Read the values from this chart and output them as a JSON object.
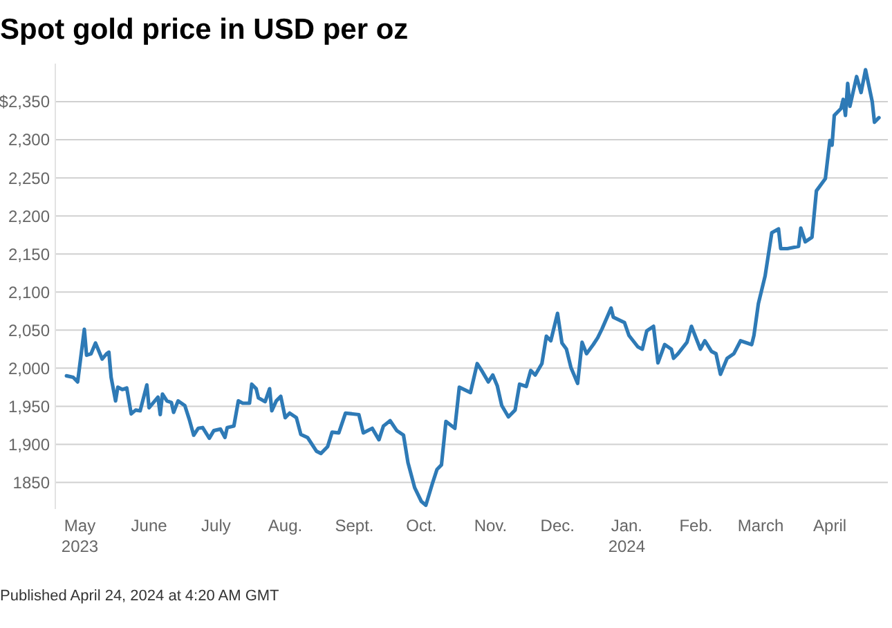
{
  "chart_data": {
    "type": "line",
    "title": "Spot gold price in USD per oz",
    "annotations": [
      "Published April 24, 2024 at 4:20 AM GMT"
    ],
    "xlim": [
      "2023-04-20",
      "2024-04-27"
    ],
    "ylim": [
      1815,
      2400
    ],
    "xticks": [
      {
        "value": "2023-05-01",
        "label": "May\n2023"
      },
      {
        "value": "2023-06-01",
        "label": "June"
      },
      {
        "value": "2023-07-01",
        "label": "July"
      },
      {
        "value": "2023-08-01",
        "label": "Aug."
      },
      {
        "value": "2023-09-01",
        "label": "Sept."
      },
      {
        "value": "2023-10-01",
        "label": "Oct."
      },
      {
        "value": "2023-11-01",
        "label": "Nov."
      },
      {
        "value": "2023-12-01",
        "label": "Dec."
      },
      {
        "value": "2024-01-01",
        "label": "Jan.\n2024"
      },
      {
        "value": "2024-02-01",
        "label": "Feb."
      },
      {
        "value": "2024-03-01",
        "label": "March"
      },
      {
        "value": "2024-04-01",
        "label": "April"
      }
    ],
    "yticks": [
      1850,
      {
        "value": 1900,
        "label": "1,900"
      },
      {
        "value": 1950,
        "label": "1,950"
      },
      {
        "value": 2000,
        "label": "2,000"
      },
      {
        "value": 2050,
        "label": "2,050"
      },
      {
        "value": 2100,
        "label": "2,100"
      },
      {
        "value": 2150,
        "label": "2,150"
      },
      {
        "value": 2200,
        "label": "2,200"
      },
      {
        "value": 2250,
        "label": "2,250"
      },
      {
        "value": 2300,
        "label": "2,300"
      },
      {
        "value": 2350,
        "label": "$2,350"
      }
    ],
    "grid": "y",
    "marker": "none",
    "line_style": "solid",
    "series": [
      {
        "color": "#2e7ab6",
        "x": [
          "2023-04-25",
          "2023-04-28",
          "2023-04-30",
          "2023-05-03",
          "2023-05-04",
          "2023-05-06",
          "2023-05-08",
          "2023-05-11",
          "2023-05-13",
          "2023-05-14",
          "2023-05-15",
          "2023-05-17",
          "2023-05-18",
          "2023-05-20",
          "2023-05-22",
          "2023-05-24",
          "2023-05-26",
          "2023-05-28",
          "2023-05-31",
          "2023-06-01",
          "2023-06-05",
          "2023-06-06",
          "2023-06-07",
          "2023-06-09",
          "2023-06-11",
          "2023-06-12",
          "2023-06-14",
          "2023-06-17",
          "2023-06-19",
          "2023-06-21",
          "2023-06-23",
          "2023-06-25",
          "2023-06-28",
          "2023-06-30",
          "2023-07-03",
          "2023-07-05",
          "2023-07-06",
          "2023-07-09",
          "2023-07-11",
          "2023-07-13",
          "2023-07-16",
          "2023-07-17",
          "2023-07-19",
          "2023-07-20",
          "2023-07-23",
          "2023-07-25",
          "2023-07-26",
          "2023-07-28",
          "2023-07-30",
          "2023-08-01",
          "2023-08-03",
          "2023-08-06",
          "2023-08-08",
          "2023-08-11",
          "2023-08-15",
          "2023-08-17",
          "2023-08-20",
          "2023-08-22",
          "2023-08-25",
          "2023-08-28",
          "2023-09-03",
          "2023-09-05",
          "2023-09-09",
          "2023-09-12",
          "2023-09-14",
          "2023-09-17",
          "2023-09-20",
          "2023-09-23",
          "2023-09-25",
          "2023-09-28",
          "2023-10-01",
          "2023-10-03",
          "2023-10-06",
          "2023-10-08",
          "2023-10-10",
          "2023-10-12",
          "2023-10-16",
          "2023-10-18",
          "2023-10-23",
          "2023-10-26",
          "2023-10-28",
          "2023-10-31",
          "2023-11-02",
          "2023-11-04",
          "2023-11-06",
          "2023-11-09",
          "2023-11-12",
          "2023-11-14",
          "2023-11-17",
          "2023-11-19",
          "2023-11-21",
          "2023-11-24",
          "2023-11-26",
          "2023-11-28",
          "2023-12-01",
          "2023-12-03",
          "2023-12-05",
          "2023-12-07",
          "2023-12-10",
          "2023-12-12",
          "2023-12-14",
          "2023-12-17",
          "2023-12-19",
          "2023-12-21",
          "2023-12-25",
          "2023-12-26",
          "2023-12-31",
          "2024-01-02",
          "2024-01-06",
          "2024-01-08",
          "2024-01-10",
          "2024-01-13",
          "2024-01-15",
          "2024-01-18",
          "2024-01-21",
          "2024-01-22",
          "2024-01-24",
          "2024-01-28",
          "2024-01-30",
          "2024-02-03",
          "2024-02-05",
          "2024-02-08",
          "2024-02-10",
          "2024-02-12",
          "2024-02-15",
          "2024-02-18",
          "2024-02-21",
          "2024-02-26",
          "2024-02-27",
          "2024-02-29",
          "2024-03-03",
          "2024-03-06",
          "2024-03-09",
          "2024-03-10",
          "2024-03-13",
          "2024-03-18",
          "2024-03-19",
          "2024-03-21",
          "2024-03-24",
          "2024-03-26",
          "2024-03-30",
          "2024-04-01",
          "2024-04-02",
          "2024-04-03",
          "2024-04-06",
          "2024-04-07",
          "2024-04-08",
          "2024-04-09",
          "2024-04-10",
          "2024-04-13",
          "2024-04-15",
          "2024-04-17",
          "2024-04-20",
          "2024-04-21",
          "2024-04-23"
        ],
        "values": [
          1990,
          1988,
          1982,
          2051,
          2017,
          2019,
          2033,
          2012,
          2019,
          2021,
          1988,
          1957,
          1975,
          1972,
          1974,
          1940,
          1945,
          1944,
          1978,
          1948,
          1962,
          1939,
          1966,
          1957,
          1955,
          1942,
          1957,
          1951,
          1933,
          1912,
          1921,
          1922,
          1908,
          1918,
          1920,
          1909,
          1922,
          1924,
          1957,
          1954,
          1954,
          1979,
          1973,
          1961,
          1956,
          1973,
          1944,
          1957,
          1963,
          1935,
          1941,
          1935,
          1913,
          1909,
          1891,
          1888,
          1897,
          1916,
          1915,
          1941,
          1939,
          1915,
          1921,
          1906,
          1924,
          1931,
          1918,
          1912,
          1876,
          1843,
          1825,
          1820,
          1849,
          1867,
          1873,
          1930,
          1921,
          1975,
          1968,
          2006,
          1997,
          1982,
          1991,
          1977,
          1951,
          1936,
          1945,
          1979,
          1976,
          1997,
          1991,
          2006,
          2042,
          2036,
          2072,
          2033,
          2025,
          2001,
          1980,
          2034,
          2019,
          2031,
          2040,
          2052,
          2079,
          2067,
          2060,
          2043,
          2028,
          2025,
          2049,
          2055,
          2007,
          2031,
          2025,
          2013,
          2019,
          2034,
          2055,
          2025,
          2036,
          2022,
          2019,
          1992,
          2013,
          2019,
          2036,
          2031,
          2043,
          2085,
          2121,
          2178,
          2183,
          2157,
          2157,
          2160,
          2184,
          2166,
          2172,
          2233,
          2249,
          2299,
          2293,
          2332,
          2341,
          2353,
          2332,
          2374,
          2344,
          2383,
          2362,
          2392,
          2350,
          2323,
          2329
        ]
      }
    ]
  }
}
